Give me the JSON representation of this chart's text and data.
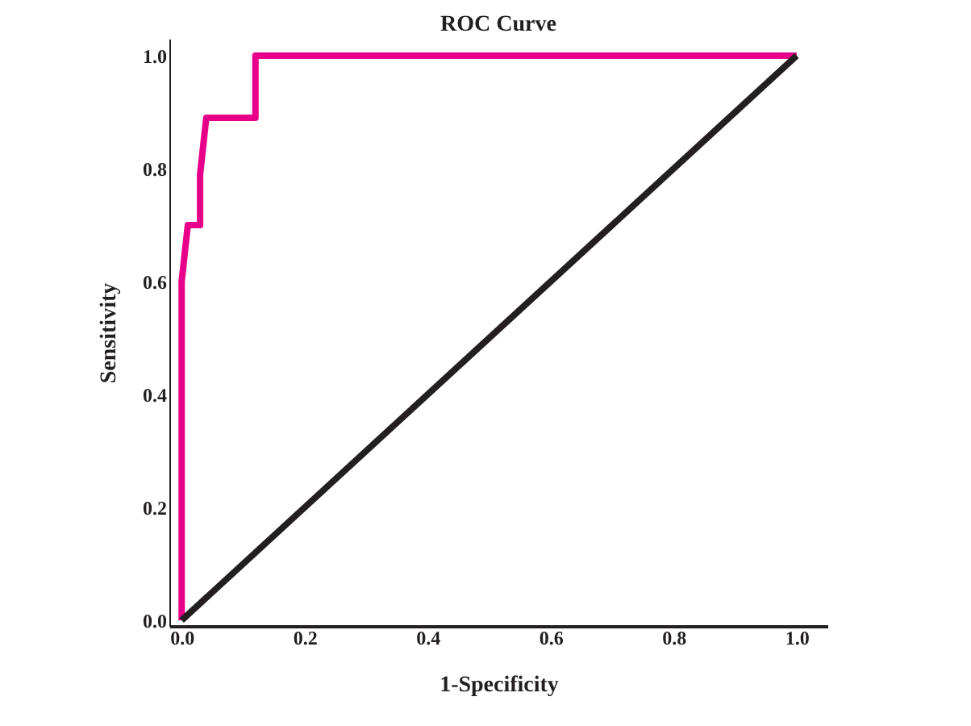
{
  "chart_data": {
    "type": "line",
    "title": "ROC Curve",
    "xlabel": "1-Specificity",
    "ylabel": "Sensitivity",
    "xlim": [
      -0.02,
      1.05
    ],
    "ylim": [
      -0.01,
      1.03
    ],
    "xticks": [
      {
        "value": 0,
        "label": "0.0"
      },
      0.2,
      0.4,
      0.6,
      0.8,
      {
        "value": 1,
        "label": "1.0"
      }
    ],
    "yticks": [
      {
        "value": 0,
        "label": "0.0"
      },
      0.2,
      0.4,
      0.6,
      0.8,
      {
        "value": 1,
        "label": "1.0"
      }
    ],
    "grid": false,
    "marker": "none",
    "line_style": "solid",
    "series": [
      {
        "color": "#e8008a",
        "x": [
          0,
          0,
          0.01,
          0.03,
          0.03,
          0.04,
          0.12,
          0.12,
          1
        ],
        "values": [
          0,
          0.6,
          0.7,
          0.7,
          0.79,
          0.89,
          0.89,
          1,
          1
        ]
      },
      {
        "color": "#231f20",
        "x": [
          0,
          1
        ],
        "values": [
          0,
          1
        ]
      }
    ]
  }
}
